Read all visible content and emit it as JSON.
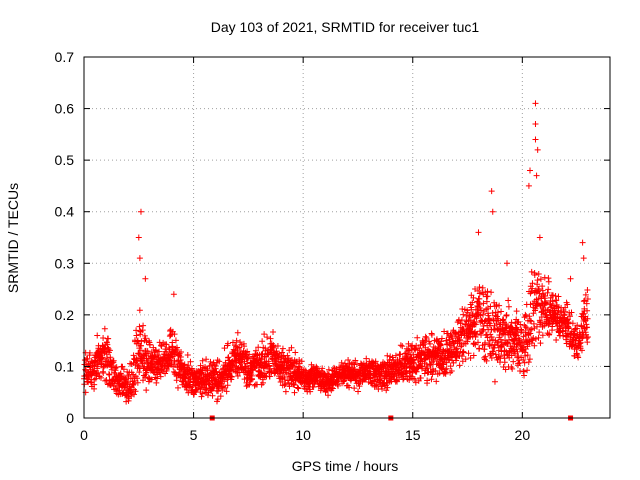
{
  "chart_data": {
    "type": "scatter",
    "title": "Day 103 of 2021, SRMTID for receiver tuc1",
    "xlabel": "GPS time / hours",
    "ylabel": "SRMTID / TECUs",
    "xlim": [
      0,
      24
    ],
    "ylim": [
      0,
      0.7
    ],
    "xticks": [
      0,
      5,
      10,
      15,
      20
    ],
    "yticks": [
      0,
      0.1,
      0.2,
      0.3,
      0.4,
      0.5,
      0.6,
      0.7
    ],
    "grid": true,
    "marker": "plus",
    "series_color": "#ff0000",
    "envelope": {
      "description": "hourly typical (median) and upper spread of the plotted SRMTID points",
      "hours": [
        0,
        0.5,
        1,
        1.5,
        2,
        2.5,
        3,
        3.5,
        4,
        4.5,
        5,
        5.5,
        6,
        6.5,
        7,
        7.5,
        8,
        8.5,
        9,
        9.5,
        10,
        10.5,
        11,
        11.5,
        12,
        12.5,
        13,
        13.5,
        14,
        14.5,
        15,
        15.5,
        16,
        16.5,
        17,
        17.5,
        18,
        18.5,
        19,
        19.5,
        20,
        20.5,
        21,
        21.5,
        22,
        22.5,
        23
      ],
      "median": [
        0.08,
        0.1,
        0.12,
        0.07,
        0.06,
        0.14,
        0.11,
        0.1,
        0.13,
        0.09,
        0.07,
        0.08,
        0.07,
        0.09,
        0.12,
        0.09,
        0.1,
        0.12,
        0.1,
        0.09,
        0.08,
        0.08,
        0.07,
        0.08,
        0.09,
        0.08,
        0.09,
        0.08,
        0.09,
        0.1,
        0.11,
        0.11,
        0.12,
        0.12,
        0.14,
        0.18,
        0.2,
        0.17,
        0.16,
        0.15,
        0.13,
        0.2,
        0.22,
        0.2,
        0.18,
        0.14,
        0.2
      ],
      "spread": [
        0.04,
        0.05,
        0.06,
        0.03,
        0.04,
        0.09,
        0.05,
        0.04,
        0.05,
        0.04,
        0.04,
        0.04,
        0.04,
        0.05,
        0.05,
        0.04,
        0.05,
        0.05,
        0.04,
        0.04,
        0.03,
        0.03,
        0.03,
        0.03,
        0.03,
        0.03,
        0.03,
        0.03,
        0.04,
        0.04,
        0.05,
        0.05,
        0.05,
        0.05,
        0.05,
        0.07,
        0.08,
        0.09,
        0.08,
        0.07,
        0.06,
        0.12,
        0.07,
        0.05,
        0.05,
        0.04,
        0.06
      ]
    },
    "peaks": [
      {
        "x": 2.6,
        "y": 0.4
      },
      {
        "x": 2.5,
        "y": 0.35
      },
      {
        "x": 2.55,
        "y": 0.31
      },
      {
        "x": 2.8,
        "y": 0.27
      },
      {
        "x": 4.1,
        "y": 0.24
      },
      {
        "x": 18.0,
        "y": 0.36
      },
      {
        "x": 18.6,
        "y": 0.44
      },
      {
        "x": 18.65,
        "y": 0.4
      },
      {
        "x": 19.3,
        "y": 0.3
      },
      {
        "x": 20.3,
        "y": 0.45
      },
      {
        "x": 20.35,
        "y": 0.48
      },
      {
        "x": 20.6,
        "y": 0.61
      },
      {
        "x": 20.6,
        "y": 0.57
      },
      {
        "x": 20.6,
        "y": 0.54
      },
      {
        "x": 20.7,
        "y": 0.52
      },
      {
        "x": 20.65,
        "y": 0.47
      },
      {
        "x": 20.8,
        "y": 0.35
      },
      {
        "x": 22.2,
        "y": 0.27
      },
      {
        "x": 22.75,
        "y": 0.34
      },
      {
        "x": 22.8,
        "y": 0.31
      }
    ],
    "gap_markers": [
      5.85,
      14.0,
      22.2
    ]
  }
}
